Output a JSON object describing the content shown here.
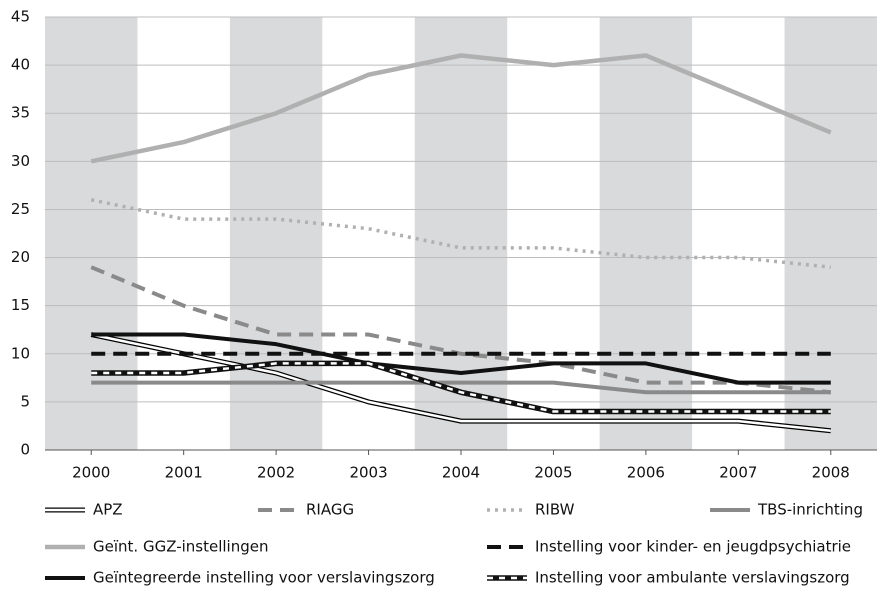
{
  "chart_data": {
    "type": "line",
    "categories": [
      "2000",
      "2001",
      "2002",
      "2003",
      "2004",
      "2005",
      "2006",
      "2007",
      "2008"
    ],
    "ylim": [
      0,
      45
    ],
    "yticks": [
      0,
      5,
      10,
      15,
      20,
      25,
      30,
      35,
      40,
      45
    ],
    "grid": true,
    "series": [
      {
        "name": "APZ",
        "color": "#000000",
        "style": "double",
        "values": [
          12,
          10,
          8,
          5,
          3,
          3,
          3,
          3,
          2
        ]
      },
      {
        "name": "RIAGG",
        "color": "#8a8a8a",
        "style": "dashed",
        "values": [
          19,
          15,
          12,
          12,
          10,
          9,
          7,
          7,
          6
        ]
      },
      {
        "name": "RIBW",
        "color": "#b0b0b0",
        "style": "dotted",
        "values": [
          26,
          24,
          24,
          23,
          21,
          21,
          20,
          20,
          19
        ]
      },
      {
        "name": "TBS-inrichting",
        "color": "#8a8a8a",
        "style": "solid",
        "values": [
          7,
          7,
          7,
          7,
          7,
          7,
          6,
          6,
          6
        ]
      },
      {
        "name": "Geïnt. GGZ-instellingen",
        "color": "#b0b0b0",
        "style": "solid",
        "values": [
          30,
          32,
          35,
          39,
          41,
          40,
          41,
          37,
          33
        ]
      },
      {
        "name": "Instelling voor kinder- en jeugdpsychiatrie",
        "color": "#111111",
        "style": "dashed",
        "values": [
          10,
          10,
          10,
          10,
          10,
          10,
          10,
          10,
          10
        ]
      },
      {
        "name": "Geïntegreerde instelling voor verslavingszorg",
        "color": "#111111",
        "style": "solid",
        "values": [
          12,
          12,
          11,
          9,
          8,
          9,
          9,
          7,
          7
        ]
      },
      {
        "name": "Instelling voor ambulante verslavingszorg",
        "color": "#111111",
        "style": "double-dashed",
        "values": [
          8,
          8,
          9,
          9,
          6,
          4,
          4,
          4,
          4
        ]
      }
    ]
  }
}
